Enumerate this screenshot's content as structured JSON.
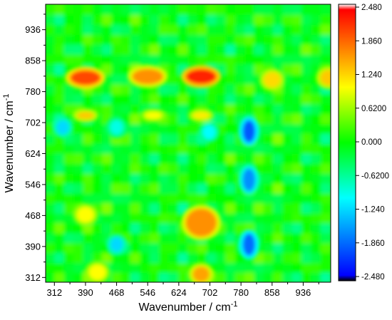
{
  "chart_data": {
    "type": "heatmap",
    "title": "",
    "xlabel": "Wavenumber / cm",
    "xlabel_sup": "-1",
    "ylabel": "Wavenumber / cm",
    "ylabel_sup": "-1",
    "x_ticks": [
      "312",
      "390",
      "468",
      "546",
      "624",
      "702",
      "780",
      "858",
      "936"
    ],
    "y_ticks": [
      "312",
      "390",
      "468",
      "546",
      "624",
      "702",
      "780",
      "858",
      "936"
    ],
    "xlim": [
      290,
      1005
    ],
    "ylim": [
      300,
      1000
    ],
    "colorbar": {
      "labels": [
        "2.480",
        "1.860",
        "1.240",
        "0.6200",
        "0.000",
        "-0.6200",
        "-1.240",
        "-1.860",
        "-2.480"
      ],
      "range": [
        -2.48,
        2.48
      ],
      "colors": [
        "#000000",
        "#0000ff",
        "#00ffff",
        "#00ff00",
        "#ffff00",
        "#ff0000",
        "#ffffff"
      ]
    },
    "features": [
      {
        "x": 390,
        "y": 815,
        "value": 2.0
      },
      {
        "x": 546,
        "y": 818,
        "value": 1.6
      },
      {
        "x": 680,
        "y": 818,
        "value": 2.2
      },
      {
        "x": 858,
        "y": 810,
        "value": 1.2
      },
      {
        "x": 1000,
        "y": 815,
        "value": 1.3
      },
      {
        "x": 390,
        "y": 720,
        "value": 1.3
      },
      {
        "x": 560,
        "y": 720,
        "value": 1.0
      },
      {
        "x": 680,
        "y": 720,
        "value": 1.1
      },
      {
        "x": 468,
        "y": 690,
        "value": -0.9
      },
      {
        "x": 333,
        "y": 690,
        "value": -1.2
      },
      {
        "x": 800,
        "y": 680,
        "value": -1.9
      },
      {
        "x": 800,
        "y": 558,
        "value": -1.6
      },
      {
        "x": 800,
        "y": 395,
        "value": -1.8
      },
      {
        "x": 680,
        "y": 450,
        "value": 1.6
      },
      {
        "x": 390,
        "y": 470,
        "value": 1.0
      },
      {
        "x": 680,
        "y": 320,
        "value": 1.5
      },
      {
        "x": 420,
        "y": 325,
        "value": 1.0
      },
      {
        "x": 468,
        "y": 395,
        "value": -1.2
      },
      {
        "x": 700,
        "y": 678,
        "value": -1.0
      }
    ]
  }
}
